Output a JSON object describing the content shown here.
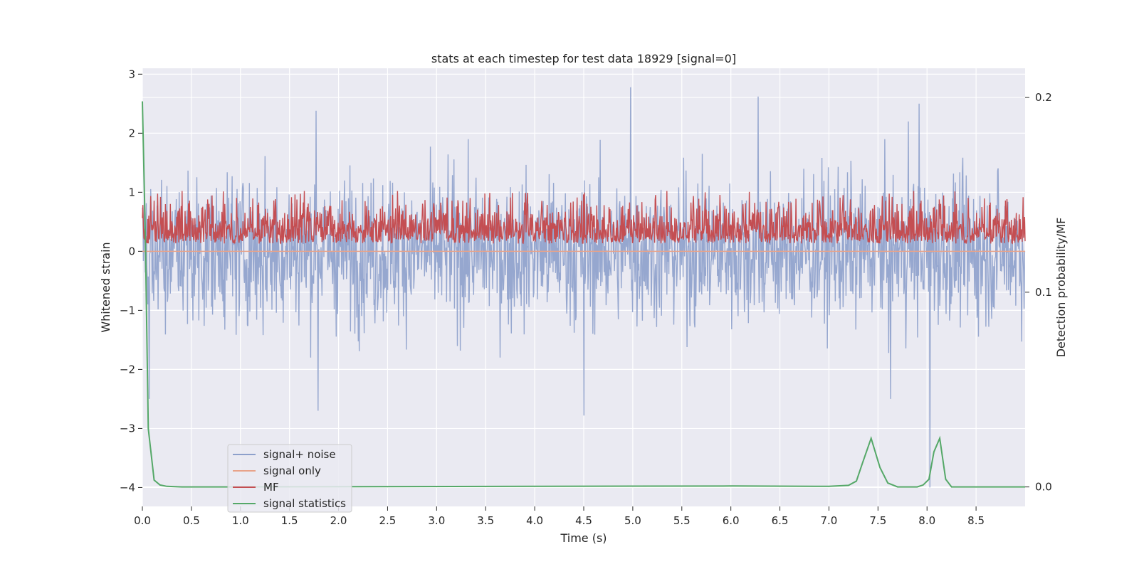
{
  "chart_data": {
    "type": "line",
    "title": "stats at each timestep for test data 18929 [signal=0]",
    "xlabel": "Time (s)",
    "ylabel_left": "Whitened strain",
    "ylabel_right": "Detection probability/MF",
    "xlim": [
      0.0,
      9.0
    ],
    "ylim_left": [
      -4.32,
      3.1
    ],
    "ylim_right": [
      -0.01,
      0.215
    ],
    "x_ticks": [
      0.0,
      0.5,
      1.0,
      1.5,
      2.0,
      2.5,
      3.0,
      3.5,
      4.0,
      4.5,
      5.0,
      5.5,
      6.0,
      6.5,
      7.0,
      7.5,
      8.0,
      8.5
    ],
    "y_ticks_left": [
      -4,
      -3,
      -2,
      -1,
      0,
      1,
      2,
      3
    ],
    "y_ticks_right": [
      0.0,
      0.1,
      0.2
    ],
    "grid": true,
    "legend_position": "lower-left",
    "series": [
      {
        "name": "signal+ noise",
        "axis": "left",
        "color": "#8da0cb",
        "kind": "noise",
        "summary": {
          "typical_range": [
            -1.8,
            1.9
          ],
          "max": 2.78,
          "min": -4.0,
          "n_points": 1800
        },
        "spikes": [
          [
            4.98,
            2.78
          ],
          [
            6.28,
            2.62
          ],
          [
            7.92,
            2.5
          ],
          [
            7.81,
            2.2
          ],
          [
            1.77,
            2.38
          ],
          [
            8.03,
            -4.0
          ],
          [
            0.07,
            -2.5
          ],
          [
            1.79,
            -2.7
          ],
          [
            4.5,
            -2.78
          ],
          [
            7.63,
            -2.5
          ]
        ]
      },
      {
        "name": "signal only",
        "axis": "left",
        "color": "#e8a38a",
        "points": [
          [
            0.0,
            0.0
          ],
          [
            9.0,
            0.0
          ]
        ]
      },
      {
        "name": "MF",
        "axis": "right",
        "color": "#c44e52",
        "kind": "noise",
        "summary": {
          "typical_range": [
            0.125,
            0.145
          ],
          "max": 0.152,
          "min": 0.1235,
          "n_points": 1800
        }
      },
      {
        "name": "signal statistics",
        "axis": "right",
        "color": "#55a868",
        "points": [
          [
            0.0,
            0.198
          ],
          [
            0.03,
            0.13
          ],
          [
            0.06,
            0.03
          ],
          [
            0.12,
            0.0035
          ],
          [
            0.18,
            0.001
          ],
          [
            0.25,
            0.0003
          ],
          [
            0.4,
            0.0
          ],
          [
            1.0,
            0.0
          ],
          [
            4.0,
            0.0003
          ],
          [
            6.0,
            0.0005
          ],
          [
            7.0,
            0.0003
          ],
          [
            7.2,
            0.0008
          ],
          [
            7.28,
            0.003
          ],
          [
            7.34,
            0.012
          ],
          [
            7.43,
            0.025
          ],
          [
            7.52,
            0.01
          ],
          [
            7.6,
            0.002
          ],
          [
            7.7,
            0.0
          ],
          [
            7.9,
            0.0
          ],
          [
            7.96,
            0.001
          ],
          [
            8.02,
            0.004
          ],
          [
            8.07,
            0.018
          ],
          [
            8.13,
            0.025
          ],
          [
            8.19,
            0.004
          ],
          [
            8.25,
            0.0
          ],
          [
            9.0,
            0.0
          ]
        ]
      }
    ]
  }
}
